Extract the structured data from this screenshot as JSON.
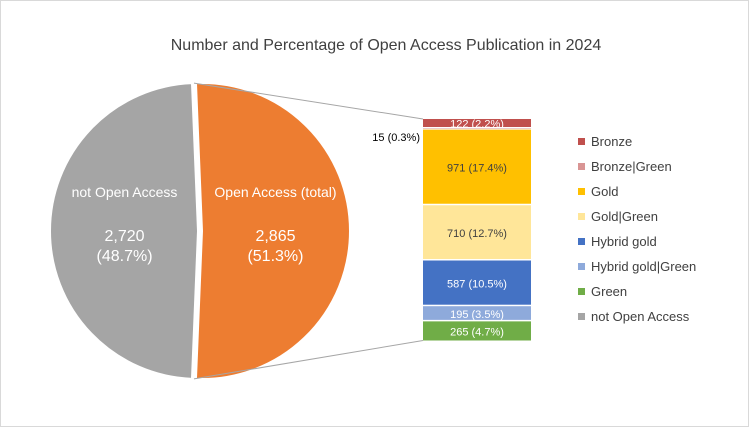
{
  "chart_data": {
    "type": "pie",
    "title": "Number and Percentage of Open Access Publication in 2024",
    "pie": {
      "slices": [
        {
          "label": "not Open Access",
          "value": 2720,
          "value_text": "2,720",
          "percent_text": "(48.7%)",
          "color": "#a5a5a5"
        },
        {
          "label": "Open Access (total)",
          "value": 2865,
          "value_text": "2,865",
          "percent_text": "(51.3%)",
          "color": "#ed7d31"
        }
      ]
    },
    "breakdown": {
      "type": "stacked-bar",
      "segments": [
        {
          "name": "Bronze",
          "value": 122,
          "label": "122  (2.2%)",
          "color": "#c0504d"
        },
        {
          "name": "Bronze|Green",
          "value": 15,
          "label": "15 (0.3%)",
          "color": "#d99594"
        },
        {
          "name": "Gold",
          "value": 971,
          "label": "971 (17.4%)",
          "color": "#ffc000"
        },
        {
          "name": "Gold|Green",
          "value": 710,
          "label": "710  (12.7%)",
          "color": "#ffe699"
        },
        {
          "name": "Hybrid gold",
          "value": 587,
          "label": "587 (10.5%)",
          "color": "#4472c4"
        },
        {
          "name": "Hybrid gold|Green",
          "value": 195,
          "label": "195  (3.5%)",
          "color": "#8eaadb"
        },
        {
          "name": "Green",
          "value": 265,
          "label": "265  (4.7%)",
          "color": "#70ad47"
        }
      ]
    },
    "legend": {
      "position": "right",
      "entries": [
        {
          "name": "Bronze",
          "color": "#c0504d"
        },
        {
          "name": "Bronze|Green",
          "color": "#d99594"
        },
        {
          "name": "Gold",
          "color": "#ffc000"
        },
        {
          "name": "Gold|Green",
          "color": "#ffe699"
        },
        {
          "name": "Hybrid gold",
          "color": "#4472c4"
        },
        {
          "name": "Hybrid gold|Green",
          "color": "#8eaadb"
        },
        {
          "name": "Green",
          "color": "#70ad47"
        },
        {
          "name": "not Open Access",
          "color": "#a5a5a5"
        }
      ]
    }
  }
}
